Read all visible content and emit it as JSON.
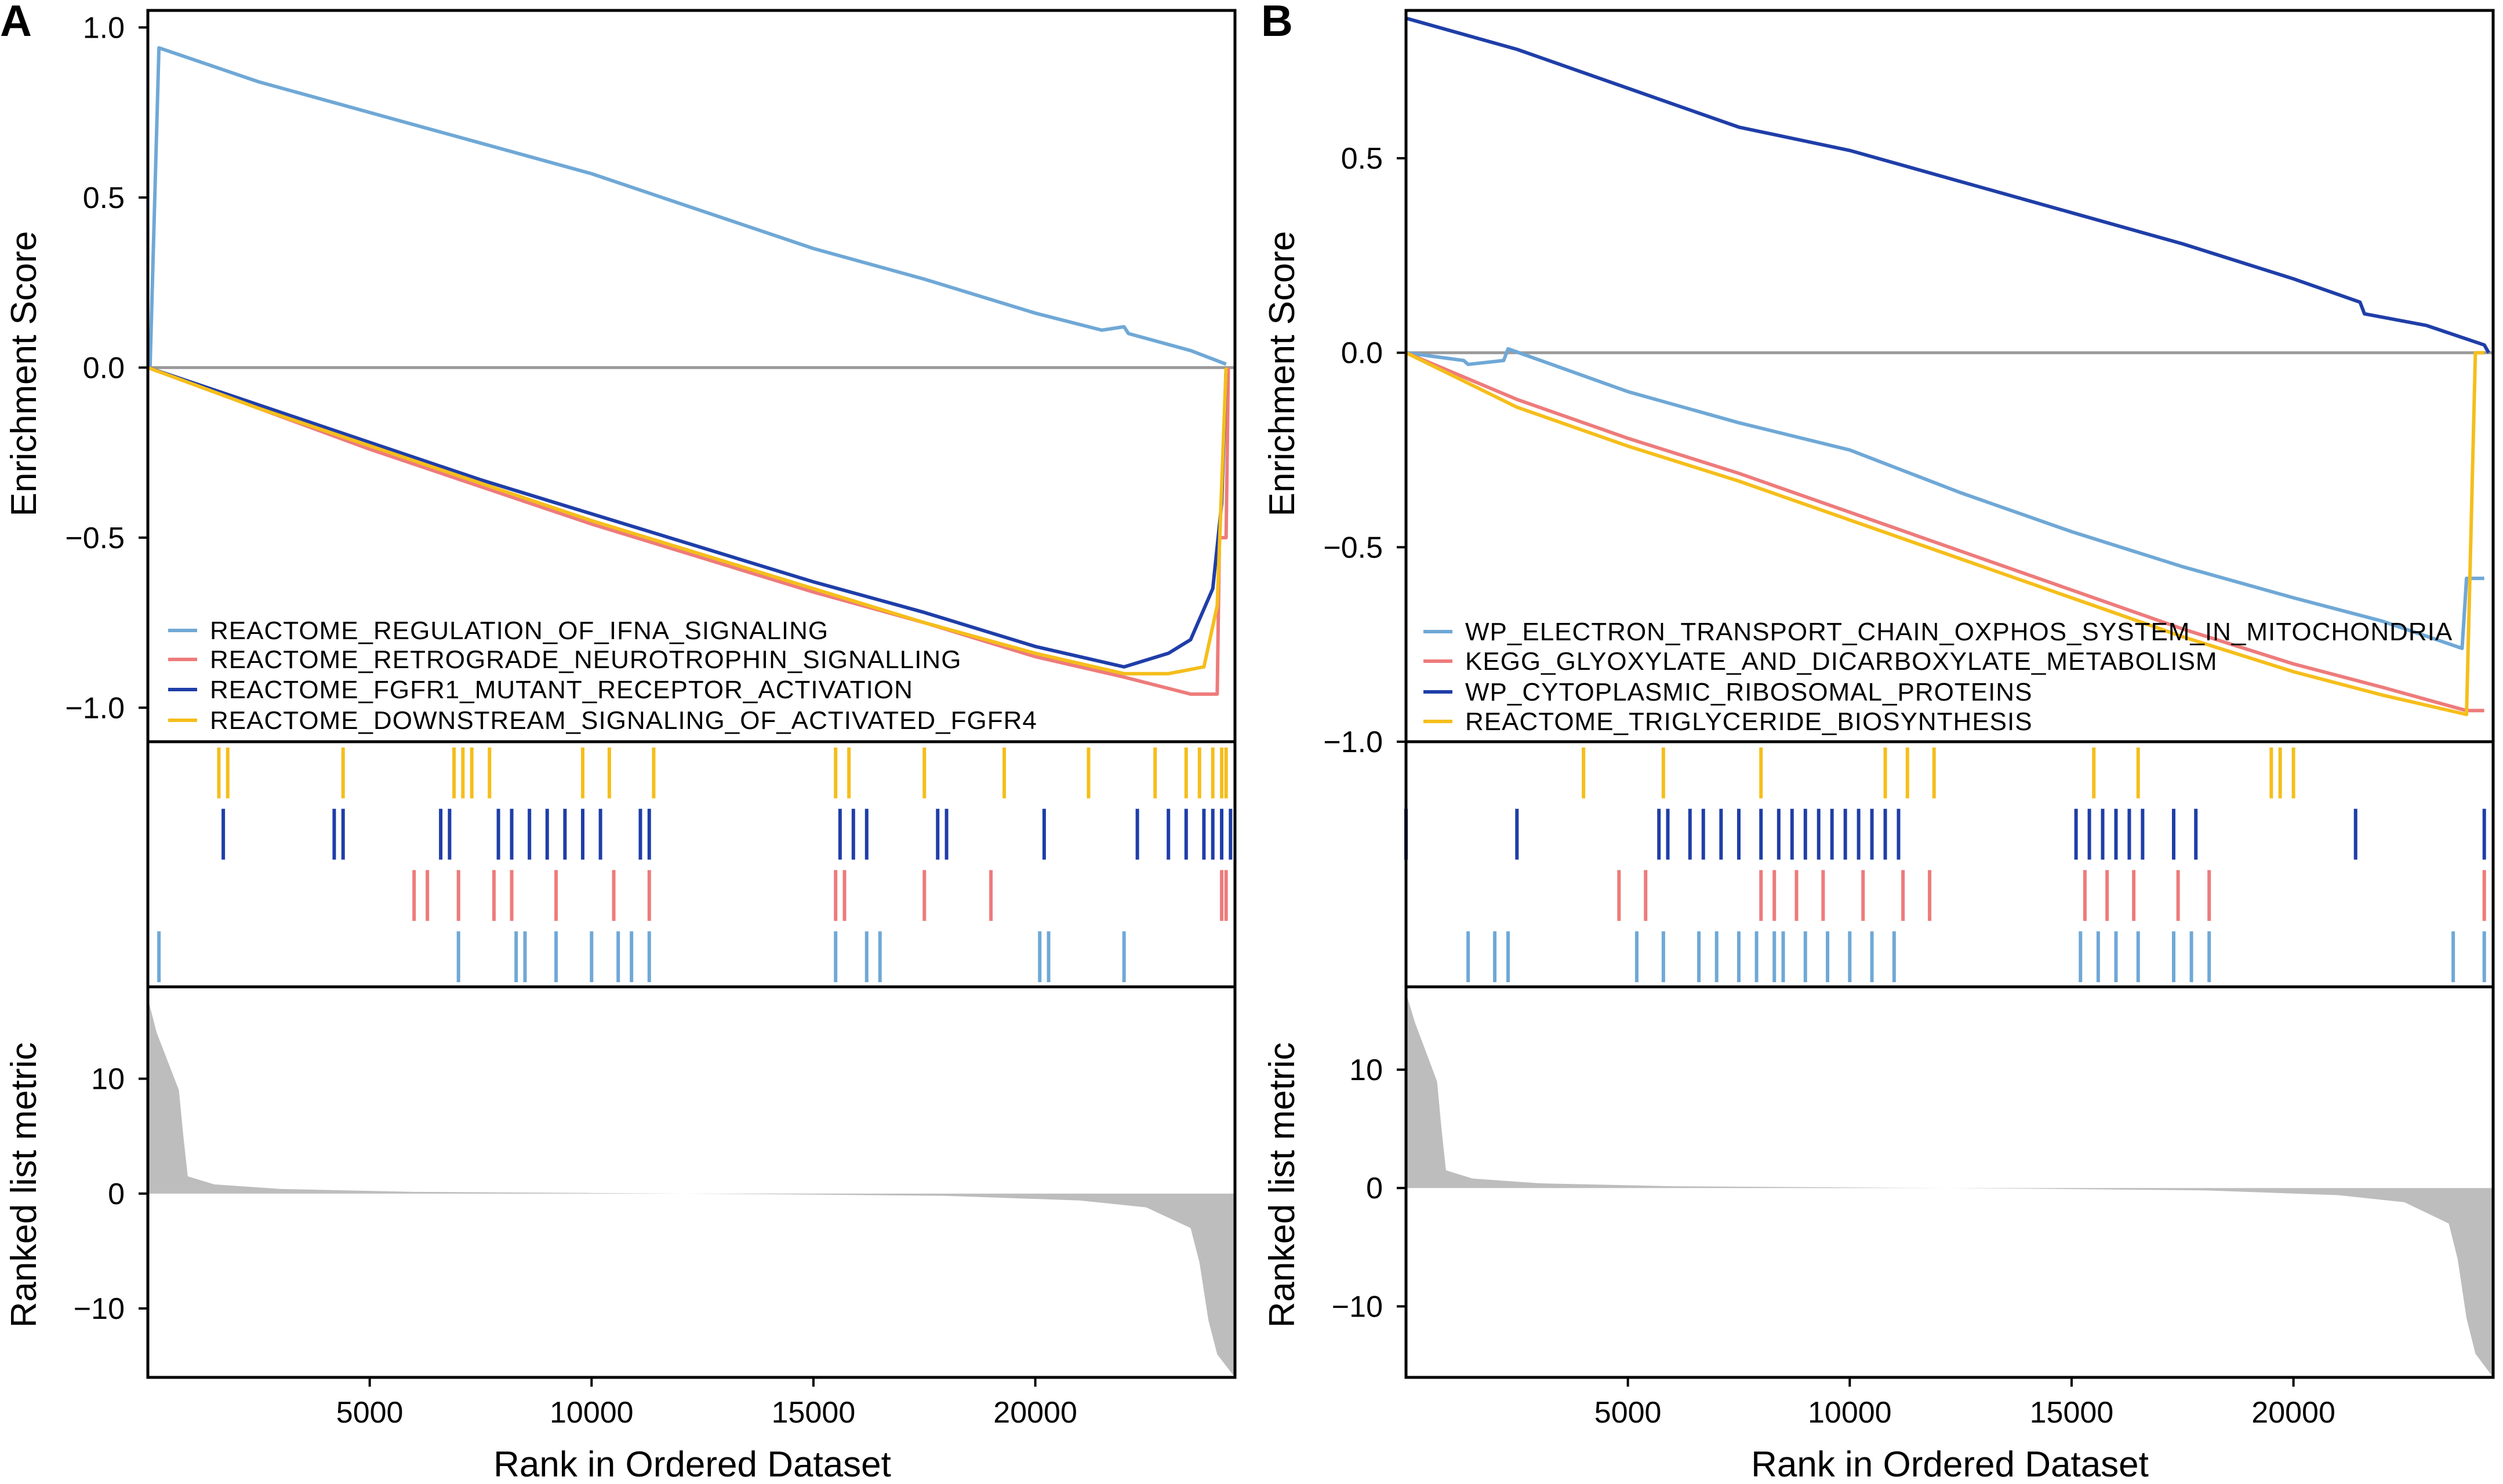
{
  "chart_data": [
    {
      "type": "line",
      "panel": "A",
      "xlabel": "Rank in Ordered Dataset",
      "ylabel_top": "Enrichment Score",
      "ylabel_bottom": "Ranked list metric",
      "x_range": [
        0,
        24500
      ],
      "x_ticks": [
        5000,
        10000,
        15000,
        20000
      ],
      "x_tick_labels": [
        "5000",
        "10000",
        "15000",
        "20000"
      ],
      "es_ylim": [
        -1.1,
        1.05
      ],
      "es_ticks": [
        1.0,
        0.5,
        0.0,
        -0.5,
        -1.0
      ],
      "es_tick_labels": [
        "1.0",
        "0.5",
        "0.0",
        "−0.5",
        "−1.0"
      ],
      "metric_ylim": [
        -16,
        18
      ],
      "metric_ticks": [
        10,
        0,
        -10
      ],
      "metric_tick_labels": [
        "10",
        "0",
        "−10"
      ],
      "series": [
        {
          "name": "REACTOME_REGULATION_OF_IFNA_SIGNALING",
          "color": "#6fa8d6",
          "x": [
            0,
            50,
            250,
            2500,
            5000,
            7500,
            10000,
            12500,
            15000,
            17500,
            20000,
            21500,
            22000,
            22100,
            23500,
            24300
          ],
          "y": [
            0,
            0.0,
            0.94,
            0.84,
            0.75,
            0.66,
            0.57,
            0.46,
            0.35,
            0.26,
            0.16,
            0.11,
            0.12,
            0.1,
            0.05,
            0.01
          ],
          "hits": [
            250,
            7000,
            8300,
            8500,
            9200,
            10000,
            10600,
            10900,
            11300,
            15500,
            16200,
            16500,
            20100,
            20300,
            22000
          ]
        },
        {
          "name": "REACTOME_RETROGRADE_NEUROTROPHIN_SIGNALLING",
          "color": "#ee7b7b",
          "x": [
            0,
            2500,
            5000,
            7500,
            10000,
            12500,
            15000,
            17500,
            20000,
            22000,
            23500,
            24100,
            24150,
            24300,
            24350
          ],
          "y": [
            0,
            -0.12,
            -0.24,
            -0.35,
            -0.46,
            -0.56,
            -0.66,
            -0.75,
            -0.85,
            -0.91,
            -0.96,
            -0.96,
            -0.5,
            -0.5,
            0
          ],
          "hits": [
            6000,
            6300,
            7000,
            7800,
            8200,
            9200,
            10500,
            11300,
            15500,
            15700,
            17500,
            19000,
            24200,
            24300
          ]
        },
        {
          "name": "REACTOME_FGFR1_MUTANT_RECEPTOR_ACTIVATION",
          "color": "#1f3ea8",
          "x": [
            0,
            2500,
            5000,
            7500,
            10000,
            12500,
            15000,
            17500,
            20000,
            22000,
            23000,
            23500,
            24000,
            24200,
            24300
          ],
          "y": [
            0,
            -0.11,
            -0.22,
            -0.33,
            -0.43,
            -0.53,
            -0.63,
            -0.72,
            -0.82,
            -0.88,
            -0.84,
            -0.8,
            -0.65,
            -0.4,
            0
          ],
          "hits": [
            1700,
            4200,
            4400,
            6600,
            6800,
            7900,
            8200,
            8600,
            9000,
            9400,
            9800,
            10200,
            11100,
            11300,
            15600,
            15900,
            16200,
            17800,
            18000,
            20200,
            22300,
            23000,
            23400,
            23800,
            24000,
            24200,
            24400
          ]
        },
        {
          "name": "REACTOME_DOWNSTREAM_SIGNALING_OF_ACTIVATED_FGFR4",
          "color": "#f5be1b",
          "x": [
            0,
            2500,
            5000,
            7500,
            10000,
            12500,
            15000,
            17500,
            20000,
            22000,
            23000,
            23800,
            24100,
            24300
          ],
          "y": [
            0,
            -0.12,
            -0.23,
            -0.34,
            -0.45,
            -0.55,
            -0.65,
            -0.75,
            -0.84,
            -0.9,
            -0.9,
            -0.88,
            -0.7,
            0
          ],
          "hits": [
            1600,
            1800,
            4400,
            6900,
            7100,
            7300,
            7700,
            9800,
            10400,
            11400,
            15500,
            15800,
            17500,
            19300,
            21200,
            22700,
            23400,
            23700,
            24000,
            24200,
            24300
          ]
        }
      ],
      "legend": [
        "REACTOME_REGULATION_OF_IFNA_SIGNALING",
        "REACTOME_RETROGRADE_NEUROTROPHIN_SIGNALLING",
        "REACTOME_FGFR1_MUTANT_RECEPTOR_ACTIVATION",
        "REACTOME_DOWNSTREAM_SIGNALING_OF_ACTIVATED_FGFR4"
      ],
      "legend_position": "bottom-left",
      "ranked_metric": {
        "x": [
          0,
          200,
          500,
          700,
          800,
          900,
          1500,
          3000,
          6000,
          10000,
          14000,
          18000,
          21000,
          22500,
          23500,
          23700,
          23900,
          24100,
          24500
        ],
        "y": [
          17,
          14,
          11,
          9,
          5,
          1.5,
          0.8,
          0.4,
          0.15,
          0.05,
          -0.05,
          -0.2,
          -0.6,
          -1.2,
          -3,
          -6,
          -11,
          -14,
          -16
        ]
      }
    },
    {
      "type": "line",
      "panel": "B",
      "xlabel": "Rank in Ordered Dataset",
      "ylabel_top": "Enrichment Score",
      "ylabel_bottom": "Ranked list metric",
      "x_range": [
        0,
        24500
      ],
      "x_ticks": [
        5000,
        10000,
        15000,
        20000
      ],
      "x_tick_labels": [
        "5000",
        "10000",
        "15000",
        "20000"
      ],
      "es_ylim": [
        -1.0,
        0.88
      ],
      "es_ticks": [
        0.5,
        0.0,
        -0.5,
        -1.0
      ],
      "es_tick_labels": [
        "0.5",
        "0.0",
        "−0.5",
        "−1.0"
      ],
      "metric_ylim": [
        -16,
        17
      ],
      "metric_ticks": [
        10,
        0,
        -10
      ],
      "metric_tick_labels": [
        "10",
        "0",
        "−10"
      ],
      "series": [
        {
          "name": "WP_ELECTRON_TRANSPORT_CHAIN_OXPHOS_SYSTEM_IN_MITOCHONDRIA",
          "color": "#6fa8d6",
          "x": [
            0,
            1300,
            1400,
            2200,
            2300,
            5000,
            7500,
            10000,
            12500,
            15000,
            17500,
            20000,
            22000,
            23800,
            23900,
            24300
          ],
          "y": [
            0,
            -0.02,
            -0.03,
            -0.02,
            0.01,
            -0.1,
            -0.18,
            -0.25,
            -0.36,
            -0.46,
            -0.55,
            -0.63,
            -0.69,
            -0.76,
            -0.58,
            -0.58
          ],
          "hits": [
            1400,
            2000,
            2300,
            5200,
            5800,
            6600,
            7000,
            7500,
            7900,
            8300,
            8500,
            9000,
            9500,
            10000,
            10500,
            11000,
            15200,
            15600,
            16000,
            16500,
            17300,
            17700,
            18100,
            23600,
            24300
          ]
        },
        {
          "name": "KEGG_GLYOXYLATE_AND_DICARBOXYLATE_METABOLISM",
          "color": "#ee7b7b",
          "x": [
            0,
            2500,
            5000,
            7500,
            10000,
            12500,
            15000,
            17500,
            20000,
            22000,
            23900,
            24300
          ],
          "y": [
            0,
            -0.12,
            -0.22,
            -0.31,
            -0.41,
            -0.51,
            -0.61,
            -0.71,
            -0.8,
            -0.86,
            -0.92,
            -0.92
          ],
          "hits": [
            4800,
            5400,
            8000,
            8300,
            8800,
            9400,
            10300,
            11200,
            11800,
            15300,
            15800,
            16400,
            17400,
            18100,
            24300
          ]
        },
        {
          "name": "WP_CYTOPLASMIC_RIBOSOMAL_PROTEINS",
          "color": "#1f3ea8",
          "x": [
            0,
            2500,
            5000,
            7500,
            10000,
            12500,
            15000,
            17500,
            20000,
            21500,
            21600,
            23000,
            24300,
            24400
          ],
          "y": [
            0.86,
            0.78,
            0.68,
            0.58,
            0.52,
            0.44,
            0.36,
            0.28,
            0.19,
            0.13,
            0.1,
            0.07,
            0.02,
            0.0
          ],
          "hits": [
            0,
            2500,
            5700,
            5900,
            6400,
            6700,
            7100,
            7500,
            8000,
            8400,
            8700,
            9000,
            9300,
            9600,
            9900,
            10200,
            10500,
            10800,
            11100,
            15100,
            15400,
            15700,
            16000,
            16300,
            16600,
            17300,
            17800,
            21400,
            24300
          ]
        },
        {
          "name": "REACTOME_TRIGLYCERIDE_BIOSYNTHESIS",
          "color": "#f5be1b",
          "x": [
            0,
            2500,
            5000,
            7500,
            10000,
            12500,
            15000,
            17500,
            20000,
            22000,
            23900,
            24100,
            24300
          ],
          "y": [
            0,
            -0.14,
            -0.24,
            -0.33,
            -0.43,
            -0.53,
            -0.63,
            -0.73,
            -0.82,
            -0.88,
            -0.93,
            0,
            0
          ],
          "hits": [
            4000,
            5800,
            8000,
            10800,
            11300,
            11900,
            15500,
            16500,
            19500,
            19700,
            20000
          ]
        }
      ],
      "legend": [
        "WP_ELECTRON_TRANSPORT_CHAIN_OXPHOS_SYSTEM_IN_MITOCHONDRIA",
        "KEGG_GLYOXYLATE_AND_DICARBOXYLATE_METABOLISM",
        "WP_CYTOPLASMIC_RIBOSOMAL_PROTEINS",
        "REACTOME_TRIGLYCERIDE_BIOSYNTHESIS"
      ],
      "legend_position": "bottom-left",
      "ranked_metric": {
        "x": [
          0,
          200,
          500,
          700,
          800,
          900,
          1500,
          3000,
          6000,
          10000,
          14000,
          18000,
          21000,
          22500,
          23500,
          23700,
          23900,
          24100,
          24500
        ],
        "y": [
          16.5,
          14,
          11,
          9,
          5,
          1.5,
          0.8,
          0.4,
          0.15,
          0.05,
          -0.05,
          -0.2,
          -0.6,
          -1.2,
          -3,
          -6,
          -11,
          -14,
          -16
        ]
      }
    }
  ],
  "panels": [
    {
      "letter": "A",
      "xlabel": "Rank in Ordered Dataset",
      "ylabel_top": "Enrichment Score",
      "ylabel_bottom": "Ranked list metric"
    },
    {
      "letter": "B",
      "xlabel": "Rank in Ordered Dataset",
      "ylabel_top": "Enrichment Score",
      "ylabel_bottom": "Ranked list metric"
    }
  ]
}
